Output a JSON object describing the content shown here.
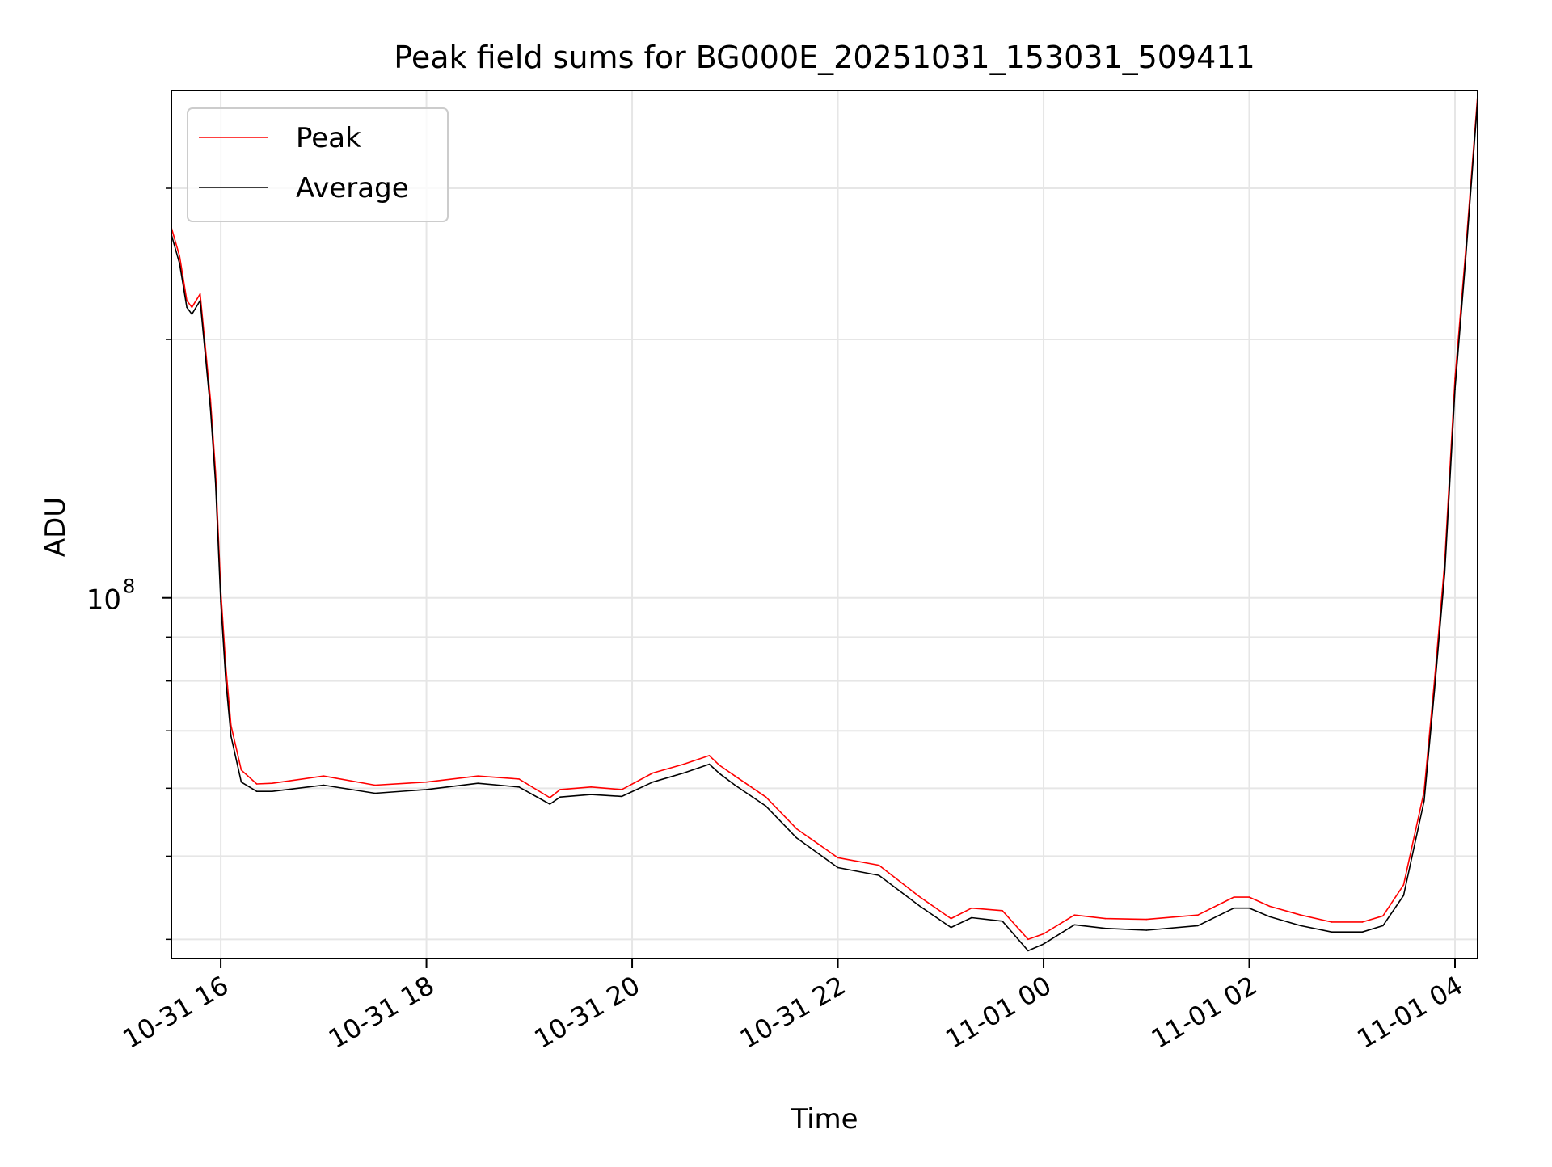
{
  "chart_data": {
    "type": "line",
    "title": "Peak field sums for BG000E_20251031_153031_509411",
    "xlabel": "Time",
    "ylabel": "ADU",
    "y_scale": "log",
    "grid": true,
    "legend_position": "top-left",
    "xlim_hours": [
      15.52,
      4.22
    ],
    "ylim": [
      38000000,
      390000000
    ],
    "x_ticks": [
      {
        "label": "10-31 16",
        "hour": 16
      },
      {
        "label": "10-31 18",
        "hour": 18
      },
      {
        "label": "10-31 20",
        "hour": 20
      },
      {
        "label": "10-31 22",
        "hour": 22
      },
      {
        "label": "11-01 00",
        "hour": 24
      },
      {
        "label": "11-01 02",
        "hour": 26
      },
      {
        "label": "11-01 04",
        "hour": 28
      }
    ],
    "y_major_ticks": [
      {
        "base": "10",
        "exp": "8",
        "value": 100000000
      }
    ],
    "y_minor_ticks": [
      40000000,
      50000000,
      60000000,
      70000000,
      80000000,
      90000000,
      200000000,
      300000000
    ],
    "series": [
      {
        "name": "Peak",
        "color": "#ff0000",
        "hours": [
          15.52,
          15.6,
          15.67,
          15.72,
          15.8,
          15.9,
          15.95,
          16.0,
          16.05,
          16.1,
          16.2,
          16.35,
          16.5,
          17.0,
          17.5,
          18.0,
          18.5,
          18.9,
          19.2,
          19.3,
          19.6,
          19.9,
          20.2,
          20.5,
          20.75,
          20.85,
          21.0,
          21.3,
          21.6,
          22.0,
          22.4,
          22.8,
          23.1,
          23.3,
          23.6,
          23.85,
          24.0,
          24.3,
          24.6,
          25.0,
          25.5,
          25.85,
          26.0,
          26.2,
          26.5,
          26.8,
          27.1,
          27.3,
          27.5,
          27.7,
          27.8,
          27.9,
          28.0,
          28.1,
          28.22
        ],
        "values": [
          270000000,
          250000000,
          222000000,
          218000000,
          226000000,
          170000000,
          140000000,
          102000000,
          83000000,
          71000000,
          63000000,
          60700000,
          60800000,
          62000000,
          60500000,
          61000000,
          62000000,
          61500000,
          58500000,
          59800000,
          60200000,
          59800000,
          62500000,
          64000000,
          65500000,
          63800000,
          62000000,
          58600000,
          53800000,
          49800000,
          48800000,
          44800000,
          42300000,
          43500000,
          43200000,
          40000000,
          40600000,
          42700000,
          42300000,
          42200000,
          42700000,
          44800000,
          44800000,
          43700000,
          42700000,
          41900000,
          41900000,
          42600000,
          46300000,
          59500000,
          80000000,
          110000000,
          180000000,
          250000000,
          385000000
        ]
      },
      {
        "name": "Average",
        "color": "#000000",
        "hours": [
          15.52,
          15.6,
          15.67,
          15.72,
          15.8,
          15.9,
          15.95,
          16.0,
          16.05,
          16.1,
          16.2,
          16.35,
          16.5,
          17.0,
          17.5,
          18.0,
          18.5,
          18.9,
          19.2,
          19.3,
          19.6,
          19.9,
          20.2,
          20.5,
          20.75,
          20.85,
          21.0,
          21.3,
          21.6,
          22.0,
          22.4,
          22.8,
          23.1,
          23.3,
          23.6,
          23.85,
          24.0,
          24.3,
          24.6,
          25.0,
          25.5,
          25.85,
          26.0,
          26.2,
          26.5,
          26.8,
          27.1,
          27.3,
          27.5,
          27.7,
          27.8,
          27.9,
          28.0,
          28.1,
          28.22
        ],
        "values": [
          265000000,
          245000000,
          218000000,
          214000000,
          222000000,
          166000000,
          136000000,
          99000000,
          80000000,
          69000000,
          61000000,
          59500000,
          59500000,
          60500000,
          59200000,
          59800000,
          60800000,
          60200000,
          57500000,
          58600000,
          59000000,
          58700000,
          61000000,
          62500000,
          64000000,
          62400000,
          60500000,
          57200000,
          52500000,
          48500000,
          47500000,
          43700000,
          41300000,
          42400000,
          42000000,
          38800000,
          39500000,
          41600000,
          41200000,
          41000000,
          41500000,
          43500000,
          43500000,
          42500000,
          41500000,
          40800000,
          40800000,
          41500000,
          45000000,
          58000000,
          78000000,
          107000000,
          175000000,
          245000000,
          380000000
        ]
      }
    ]
  }
}
